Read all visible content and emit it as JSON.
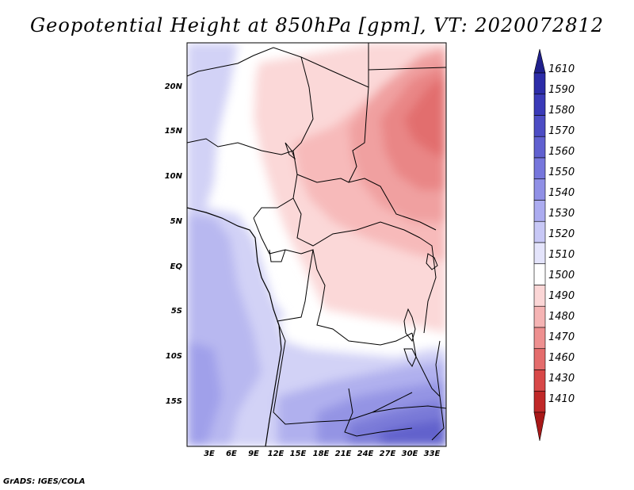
{
  "title": "Geopotential Height at 850hPa [gpm], VT: 2020072812",
  "credit": "GrADS: IGES/COLA",
  "lat_labels": [
    "20N",
    "15N",
    "10N",
    "5N",
    "EQ",
    "5S",
    "10S",
    "15S"
  ],
  "lon_labels": [
    "3E",
    "6E",
    "9E",
    "12E",
    "15E",
    "18E",
    "21E",
    "24E",
    "27E",
    "30E",
    "33E"
  ],
  "colorbar": {
    "labels": [
      "1610",
      "1590",
      "1580",
      "1570",
      "1560",
      "1550",
      "1540",
      "1530",
      "1520",
      "1510",
      "1500",
      "1490",
      "1480",
      "1470",
      "1460",
      "1430",
      "1410"
    ],
    "colors": [
      "#20208c",
      "#2c2ca8",
      "#3a3ab8",
      "#4c4cc4",
      "#6060d0",
      "#7676dc",
      "#9090e6",
      "#acacf0",
      "#c8c8f6",
      "#e4e4fb",
      "#ffffff",
      "#fbd6d6",
      "#f5b4b4",
      "#ee9090",
      "#e46c6c",
      "#d84848",
      "#c02828",
      "#a81818"
    ]
  }
}
